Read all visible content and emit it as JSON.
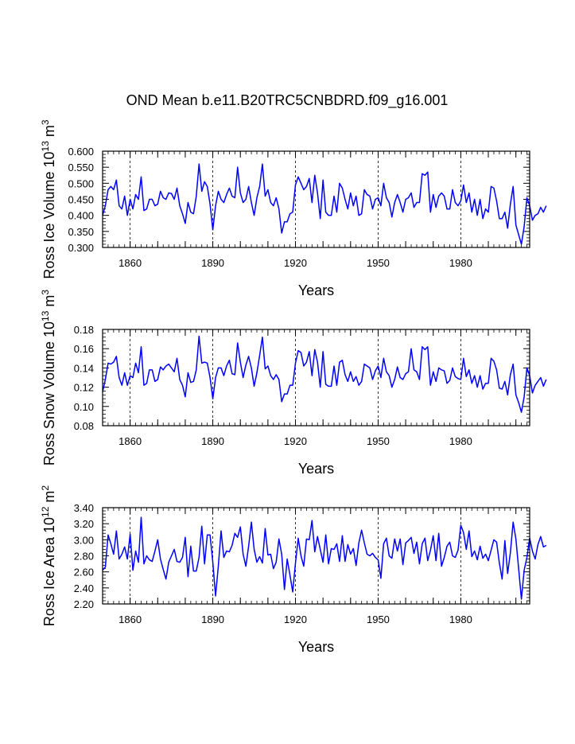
{
  "figure_title": "OND Mean b.e11.B20TRC5CNBDRD.f09_g16.001",
  "colors": {
    "series": "#0000ff",
    "axes": "#000000",
    "gridline": "#000000"
  },
  "chart_data": [
    {
      "type": "line",
      "title": "",
      "xlabel": "Years",
      "ylabel": {
        "text": "Ross Ice Volume 10",
        "exp1": "13",
        "mid": " m",
        "exp2": "3"
      },
      "xlim": [
        1850,
        2005
      ],
      "ylim": [
        0.3,
        0.6
      ],
      "x_ticks": [
        1860,
        1890,
        1920,
        1950,
        1980
      ],
      "x_tick_labels": [
        "1860",
        "1890",
        "1920",
        "1950",
        "1980"
      ],
      "y_ticks": [
        0.3,
        0.35,
        0.4,
        0.45,
        0.5,
        0.55,
        0.6
      ],
      "y_tick_labels": [
        "0.300",
        "0.350",
        "0.400",
        "0.450",
        "0.500",
        "0.550",
        "0.600"
      ],
      "grid": "x-dashed",
      "x_start": 1850,
      "series": [
        {
          "name": "Ross Ice Volume",
          "values": [
            0.4,
            0.43,
            0.48,
            0.49,
            0.48,
            0.51,
            0.43,
            0.42,
            0.46,
            0.4,
            0.45,
            0.42,
            0.465,
            0.45,
            0.52,
            0.415,
            0.42,
            0.45,
            0.45,
            0.43,
            0.435,
            0.475,
            0.455,
            0.45,
            0.47,
            0.468,
            0.45,
            0.485,
            0.43,
            0.405,
            0.375,
            0.44,
            0.41,
            0.405,
            0.46,
            0.56,
            0.475,
            0.505,
            0.49,
            0.435,
            0.355,
            0.43,
            0.475,
            0.45,
            0.44,
            0.465,
            0.485,
            0.46,
            0.455,
            0.55,
            0.47,
            0.44,
            0.45,
            0.49,
            0.44,
            0.4,
            0.455,
            0.49,
            0.56,
            0.46,
            0.48,
            0.44,
            0.43,
            0.455,
            0.42,
            0.345,
            0.38,
            0.38,
            0.405,
            0.41,
            0.495,
            0.52,
            0.5,
            0.48,
            0.49,
            0.515,
            0.44,
            0.525,
            0.47,
            0.39,
            0.51,
            0.41,
            0.4,
            0.4,
            0.46,
            0.41,
            0.5,
            0.485,
            0.45,
            0.42,
            0.47,
            0.43,
            0.46,
            0.4,
            0.405,
            0.48,
            0.465,
            0.46,
            0.42,
            0.45,
            0.455,
            0.43,
            0.5,
            0.455,
            0.44,
            0.395,
            0.44,
            0.465,
            0.44,
            0.41,
            0.45,
            0.455,
            0.47,
            0.425,
            0.44,
            0.44,
            0.53,
            0.525,
            0.535,
            0.41,
            0.465,
            0.425,
            0.46,
            0.47,
            0.46,
            0.42,
            0.42,
            0.48,
            0.44,
            0.43,
            0.445,
            0.495,
            0.44,
            0.47,
            0.41,
            0.45,
            0.4,
            0.45,
            0.39,
            0.42,
            0.41,
            0.49,
            0.485,
            0.445,
            0.39,
            0.39,
            0.41,
            0.36,
            0.435,
            0.49,
            0.37,
            0.34,
            0.31,
            0.365,
            0.455,
            0.43,
            0.385,
            0.4,
            0.405,
            0.425,
            0.41,
            0.43
          ]
        }
      ]
    },
    {
      "type": "line",
      "title": "",
      "xlabel": "Years",
      "ylabel": {
        "text": "Ross Snow Volume 10",
        "exp1": "13",
        "mid": " m",
        "exp2": "3"
      },
      "xlim": [
        1850,
        2005
      ],
      "ylim": [
        0.08,
        0.18
      ],
      "x_ticks": [
        1860,
        1890,
        1920,
        1950,
        1980
      ],
      "x_tick_labels": [
        "1860",
        "1890",
        "1920",
        "1950",
        "1980"
      ],
      "y_ticks": [
        0.08,
        0.1,
        0.12,
        0.14,
        0.16,
        0.18
      ],
      "y_tick_labels": [
        "0.08",
        "0.10",
        "0.12",
        "0.14",
        "0.16",
        "0.18"
      ],
      "grid": "x-dashed",
      "x_start": 1850,
      "series": [
        {
          "name": "Ross Snow Volume",
          "values": [
            0.115,
            0.128,
            0.145,
            0.144,
            0.146,
            0.152,
            0.13,
            0.122,
            0.135,
            0.122,
            0.132,
            0.13,
            0.145,
            0.135,
            0.162,
            0.122,
            0.124,
            0.138,
            0.138,
            0.126,
            0.128,
            0.141,
            0.138,
            0.142,
            0.144,
            0.14,
            0.136,
            0.15,
            0.128,
            0.122,
            0.11,
            0.135,
            0.125,
            0.126,
            0.138,
            0.173,
            0.145,
            0.146,
            0.145,
            0.13,
            0.108,
            0.13,
            0.14,
            0.14,
            0.132,
            0.142,
            0.148,
            0.134,
            0.133,
            0.166,
            0.146,
            0.13,
            0.143,
            0.152,
            0.14,
            0.121,
            0.135,
            0.153,
            0.172,
            0.139,
            0.142,
            0.132,
            0.128,
            0.133,
            0.128,
            0.105,
            0.113,
            0.113,
            0.122,
            0.122,
            0.145,
            0.158,
            0.156,
            0.142,
            0.146,
            0.157,
            0.132,
            0.159,
            0.146,
            0.12,
            0.157,
            0.123,
            0.121,
            0.121,
            0.142,
            0.122,
            0.146,
            0.148,
            0.133,
            0.126,
            0.136,
            0.126,
            0.131,
            0.122,
            0.126,
            0.144,
            0.142,
            0.14,
            0.128,
            0.137,
            0.142,
            0.13,
            0.15,
            0.136,
            0.132,
            0.12,
            0.128,
            0.141,
            0.13,
            0.128,
            0.134,
            0.136,
            0.16,
            0.138,
            0.136,
            0.128,
            0.162,
            0.159,
            0.162,
            0.122,
            0.136,
            0.126,
            0.14,
            0.138,
            0.137,
            0.124,
            0.127,
            0.14,
            0.131,
            0.129,
            0.128,
            0.15,
            0.131,
            0.138,
            0.124,
            0.132,
            0.12,
            0.132,
            0.118,
            0.124,
            0.124,
            0.15,
            0.147,
            0.138,
            0.119,
            0.118,
            0.126,
            0.112,
            0.133,
            0.144,
            0.112,
            0.104,
            0.094,
            0.11,
            0.14,
            0.132,
            0.114,
            0.122,
            0.126,
            0.13,
            0.121,
            0.128
          ]
        }
      ]
    },
    {
      "type": "line",
      "title": "",
      "xlabel": "Years",
      "ylabel": {
        "text": "Ross Ice Area 10",
        "exp1": "12",
        "mid": " m",
        "exp2": "2"
      },
      "xlim": [
        1850,
        2005
      ],
      "ylim": [
        2.2,
        3.4
      ],
      "x_ticks": [
        1860,
        1890,
        1920,
        1950,
        1980
      ],
      "x_tick_labels": [
        "1860",
        "1890",
        "1920",
        "1950",
        "1980"
      ],
      "y_ticks": [
        2.2,
        2.4,
        2.6,
        2.8,
        3.0,
        3.2,
        3.4
      ],
      "y_tick_labels": [
        "2.20",
        "2.40",
        "2.60",
        "2.80",
        "3.00",
        "3.20",
        "3.40"
      ],
      "grid": "x-dashed",
      "x_start": 1850,
      "series": [
        {
          "name": "Ross Ice Area",
          "values": [
            2.62,
            2.66,
            3.06,
            2.95,
            2.82,
            3.11,
            2.76,
            2.82,
            2.91,
            2.76,
            3.07,
            2.62,
            2.86,
            2.72,
            3.28,
            2.7,
            2.8,
            2.75,
            2.73,
            2.86,
            3.0,
            2.76,
            2.63,
            2.51,
            2.72,
            2.8,
            2.88,
            2.73,
            2.72,
            2.78,
            3.03,
            2.54,
            2.92,
            2.61,
            2.61,
            2.78,
            3.17,
            2.7,
            3.06,
            3.06,
            2.72,
            2.3,
            2.67,
            3.11,
            2.78,
            2.86,
            2.85,
            2.93,
            3.08,
            3.03,
            3.16,
            2.82,
            2.67,
            2.92,
            3.22,
            2.88,
            2.72,
            2.79,
            2.71,
            3.14,
            2.81,
            2.82,
            2.64,
            2.72,
            3.01,
            2.82,
            2.38,
            2.76,
            2.56,
            2.35,
            2.71,
            3.02,
            2.8,
            2.67,
            3.01,
            3.0,
            3.24,
            2.85,
            3.04,
            2.88,
            2.72,
            3.06,
            2.7,
            2.89,
            2.88,
            2.95,
            2.73,
            3.05,
            2.73,
            2.94,
            2.82,
            2.89,
            2.68,
            2.96,
            3.12,
            2.96,
            2.82,
            2.8,
            2.83,
            2.78,
            2.75,
            2.52,
            2.95,
            3.02,
            2.8,
            2.77,
            3.01,
            2.86,
            3.01,
            2.69,
            2.96,
            2.99,
            3.03,
            2.83,
            2.97,
            2.7,
            2.95,
            3.02,
            2.74,
            2.87,
            3.05,
            2.74,
            3.08,
            2.67,
            2.78,
            2.92,
            2.97,
            2.8,
            2.78,
            2.87,
            3.18,
            3.09,
            2.88,
            3.11,
            2.79,
            2.86,
            2.75,
            2.92,
            2.77,
            2.82,
            2.74,
            2.87,
            3.0,
            2.97,
            2.71,
            2.51,
            2.99,
            2.58,
            2.84,
            3.22,
            3.01,
            2.64,
            2.26,
            2.62,
            2.78,
            3.02,
            2.86,
            2.76,
            2.94,
            3.04,
            2.91,
            2.93
          ]
        }
      ]
    }
  ]
}
